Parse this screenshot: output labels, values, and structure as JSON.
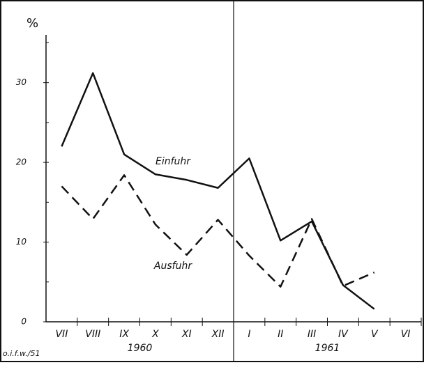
{
  "chart_data": {
    "type": "line",
    "y_label": "%",
    "source": "o.i.f.w./51",
    "categories": [
      "VII",
      "VIII",
      "IX",
      "X",
      "XI",
      "XII",
      "I",
      "II",
      "III",
      "IV",
      "V",
      "VI"
    ],
    "groups": [
      {
        "label": "1960",
        "count": 6
      },
      {
        "label": "1961",
        "count": 6
      }
    ],
    "series": [
      {
        "name": "Einfuhr",
        "color": "#111111",
        "dashed": false,
        "values": [
          22,
          31.2,
          21,
          18.5,
          17.8,
          16.8,
          20.5,
          10.2,
          12.6,
          4.6,
          1.6,
          null
        ]
      },
      {
        "name": "Ausfuhr",
        "color": "#111111",
        "dashed": true,
        "values": [
          17,
          12.9,
          18.4,
          12.2,
          8.4,
          12.8,
          8.3,
          4.4,
          12.9,
          4.5,
          6.2,
          null
        ]
      }
    ],
    "ylim": [
      0,
      36
    ],
    "yticks": [
      0,
      10,
      20,
      30
    ],
    "yminorticks": [
      5,
      15,
      25,
      35
    ],
    "grid": false
  }
}
